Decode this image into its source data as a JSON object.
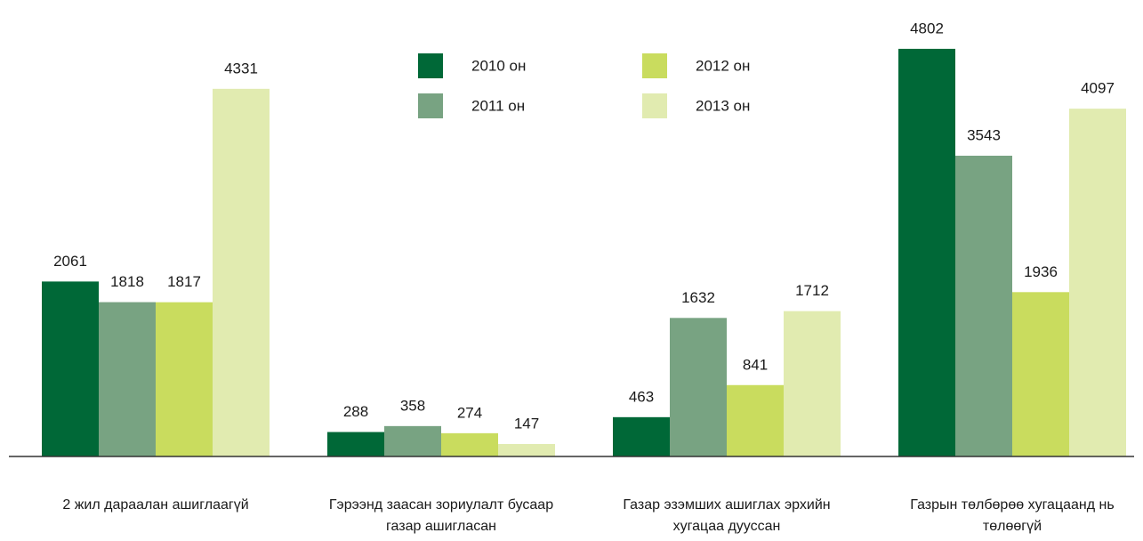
{
  "chart_data": {
    "type": "bar",
    "categories": [
      "2 жил дараалан ашиглаагүй",
      "Гэрээнд заасан зориулалт бусаар газар ашигласан",
      "Газар эзэмших ашиглах эрхийн хугацаа дууссан",
      "Газрын төлбөрөө хугацаанд нь төлөөгүй"
    ],
    "series": [
      {
        "name": "2010 он",
        "color": "#006837",
        "values": [
          2061,
          288,
          463,
          4802
        ]
      },
      {
        "name": "2011 он",
        "color": "#78a382",
        "values": [
          1818,
          358,
          1632,
          3543
        ]
      },
      {
        "name": "2012 он",
        "color": "#c9dc5e",
        "values": [
          1817,
          274,
          841,
          1936
        ]
      },
      {
        "name": "2013 он",
        "color": "#e1ebb0",
        "values": [
          4331,
          147,
          1712,
          4097
        ]
      }
    ],
    "ylim": [
      0,
      5000
    ]
  }
}
